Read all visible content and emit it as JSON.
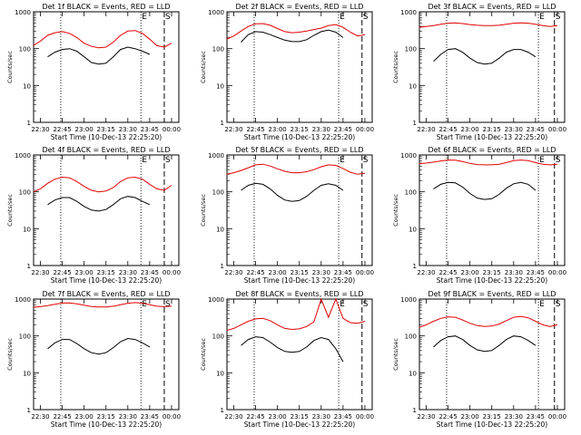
{
  "figure": {
    "xlabel": "Start Time (10-Dec-13 22:25:20)",
    "ylabel": "Counts/sec",
    "time_ticks": [
      "22:30",
      "22:45",
      "23:00",
      "23:15",
      "23:30",
      "23:45",
      "00:00"
    ],
    "y_ticks": [
      "1",
      "10",
      "100",
      "1000"
    ],
    "corner_markers": [
      "E",
      "S"
    ],
    "colors": {
      "events": "#000000",
      "lld": "#e00000",
      "background": "#ffffff"
    }
  },
  "chart_data": [
    {
      "type": "line",
      "title": "Det 1f BLACK = Events, RED = LLD",
      "xlim": [
        "22:25:20",
        "00:05:00"
      ],
      "ylim": [
        1,
        1000
      ],
      "yscale": "log",
      "markers": {
        "dotted": [
          "22:44",
          "23:39"
        ],
        "dashed": [
          "23:55"
        ]
      },
      "series": [
        {
          "name": "Events",
          "color": "#000000",
          "x": [
            "22:35",
            "22:40",
            "22:45",
            "22:50",
            "22:55",
            "23:00",
            "23:05",
            "23:10",
            "23:15",
            "23:20",
            "23:25",
            "23:30",
            "23:35",
            "23:40",
            "23:45"
          ],
          "values": [
            60,
            80,
            95,
            100,
            85,
            60,
            42,
            38,
            40,
            60,
            95,
            110,
            100,
            85,
            70
          ]
        },
        {
          "name": "LLD",
          "color": "#e00000",
          "x": [
            "22:25",
            "22:30",
            "22:35",
            "22:40",
            "22:45",
            "22:50",
            "22:55",
            "23:00",
            "23:05",
            "23:10",
            "23:15",
            "23:20",
            "23:25",
            "23:30",
            "23:35",
            "23:40",
            "23:45",
            "23:50",
            "23:55",
            "00:00"
          ],
          "values": [
            120,
            160,
            230,
            270,
            290,
            260,
            200,
            140,
            115,
            105,
            110,
            150,
            230,
            300,
            310,
            260,
            180,
            120,
            110,
            140
          ]
        }
      ]
    },
    {
      "type": "line",
      "title": "Det 2f BLACK = Events, RED = LLD",
      "xlim": [
        "22:25:20",
        "00:05:00"
      ],
      "ylim": [
        1,
        1000
      ],
      "yscale": "log",
      "markers": {
        "dotted": [
          "22:44",
          "23:42"
        ],
        "dashed": [
          "23:58"
        ]
      },
      "series": [
        {
          "name": "Events",
          "color": "#000000",
          "x": [
            "22:35",
            "22:40",
            "22:45",
            "22:50",
            "22:55",
            "23:00",
            "23:05",
            "23:10",
            "23:15",
            "23:20",
            "23:25",
            "23:30",
            "23:35",
            "23:40",
            "23:45"
          ],
          "values": [
            150,
            240,
            290,
            280,
            240,
            200,
            170,
            155,
            155,
            175,
            230,
            290,
            320,
            280,
            200
          ]
        },
        {
          "name": "LLD",
          "color": "#e00000",
          "x": [
            "22:25",
            "22:30",
            "22:35",
            "22:40",
            "22:45",
            "22:50",
            "22:55",
            "23:00",
            "23:05",
            "23:10",
            "23:15",
            "23:20",
            "23:25",
            "23:30",
            "23:35",
            "23:40",
            "23:45",
            "23:50",
            "23:55",
            "00:00"
          ],
          "values": [
            180,
            220,
            300,
            400,
            470,
            480,
            430,
            350,
            290,
            270,
            280,
            300,
            330,
            360,
            420,
            450,
            380,
            280,
            220,
            240
          ]
        }
      ]
    },
    {
      "type": "line",
      "title": "Det 3f BLACK = Events, RED = LLD",
      "xlim": [
        "22:25:20",
        "00:05:00"
      ],
      "ylim": [
        1,
        1000
      ],
      "yscale": "log",
      "markers": {
        "dotted": [
          "22:44",
          "23:47"
        ],
        "dashed": [
          "23:58"
        ]
      },
      "series": [
        {
          "name": "Events",
          "color": "#000000",
          "x": [
            "22:35",
            "22:40",
            "22:45",
            "22:50",
            "22:55",
            "23:00",
            "23:05",
            "23:10",
            "23:15",
            "23:20",
            "23:25",
            "23:30",
            "23:35",
            "23:40",
            "23:45"
          ],
          "values": [
            45,
            70,
            95,
            100,
            80,
            55,
            42,
            38,
            40,
            55,
            80,
            95,
            95,
            80,
            60
          ]
        },
        {
          "name": "LLD",
          "color": "#e00000",
          "x": [
            "22:25",
            "22:30",
            "22:35",
            "22:40",
            "22:45",
            "22:50",
            "22:55",
            "23:00",
            "23:05",
            "23:10",
            "23:15",
            "23:20",
            "23:25",
            "23:30",
            "23:35",
            "23:40",
            "23:45",
            "23:50",
            "23:55",
            "00:00"
          ],
          "values": [
            380,
            400,
            420,
            460,
            490,
            500,
            480,
            450,
            430,
            420,
            420,
            430,
            460,
            490,
            500,
            490,
            460,
            420,
            400,
            420
          ]
        }
      ]
    },
    {
      "type": "line",
      "title": "Det 4f BLACK = Events, RED = LLD",
      "xlim": [
        "22:25:20",
        "00:05:00"
      ],
      "ylim": [
        1,
        1000
      ],
      "yscale": "log",
      "markers": {
        "dotted": [
          "22:44",
          "23:39"
        ],
        "dashed": [
          "23:55"
        ]
      },
      "series": [
        {
          "name": "Events",
          "color": "#000000",
          "x": [
            "22:35",
            "22:40",
            "22:45",
            "22:50",
            "22:55",
            "23:00",
            "23:05",
            "23:10",
            "23:15",
            "23:20",
            "23:25",
            "23:30",
            "23:35",
            "23:40",
            "23:45"
          ],
          "values": [
            45,
            60,
            70,
            70,
            55,
            40,
            32,
            30,
            33,
            45,
            65,
            75,
            70,
            55,
            45
          ]
        },
        {
          "name": "LLD",
          "color": "#e00000",
          "x": [
            "22:25",
            "22:30",
            "22:35",
            "22:40",
            "22:45",
            "22:50",
            "22:55",
            "23:00",
            "23:05",
            "23:10",
            "23:15",
            "23:20",
            "23:25",
            "23:30",
            "23:35",
            "23:40",
            "23:45",
            "23:50",
            "23:55",
            "00:00"
          ],
          "values": [
            100,
            120,
            170,
            220,
            250,
            240,
            190,
            140,
            110,
            100,
            105,
            130,
            190,
            240,
            250,
            220,
            160,
            120,
            110,
            150
          ]
        }
      ]
    },
    {
      "type": "line",
      "title": "Det 5f BLACK = Events, RED = LLD",
      "xlim": [
        "22:25:20",
        "00:05:00"
      ],
      "ylim": [
        1,
        1000
      ],
      "yscale": "log",
      "markers": {
        "dotted": [
          "22:44",
          "23:42"
        ],
        "dashed": [
          "23:58"
        ]
      },
      "series": [
        {
          "name": "Events",
          "color": "#000000",
          "x": [
            "22:35",
            "22:40",
            "22:45",
            "22:50",
            "22:55",
            "23:00",
            "23:05",
            "23:10",
            "23:15",
            "23:20",
            "23:25",
            "23:30",
            "23:35",
            "23:40",
            "23:45"
          ],
          "values": [
            110,
            150,
            170,
            160,
            120,
            80,
            60,
            55,
            58,
            75,
            110,
            150,
            165,
            150,
            110
          ]
        },
        {
          "name": "LLD",
          "color": "#e00000",
          "x": [
            "22:25",
            "22:30",
            "22:35",
            "22:40",
            "22:45",
            "22:50",
            "22:55",
            "23:00",
            "23:05",
            "23:10",
            "23:15",
            "23:20",
            "23:25",
            "23:30",
            "23:35",
            "23:40",
            "23:45",
            "23:50",
            "23:55",
            "00:00"
          ],
          "values": [
            300,
            330,
            380,
            450,
            540,
            560,
            500,
            420,
            360,
            330,
            330,
            350,
            400,
            480,
            540,
            520,
            430,
            340,
            300,
            320
          ]
        }
      ]
    },
    {
      "type": "line",
      "title": "Det 6f BLACK = Events, RED = LLD",
      "xlim": [
        "22:25:20",
        "00:05:00"
      ],
      "ylim": [
        1,
        1000
      ],
      "yscale": "log",
      "markers": {
        "dotted": [
          "22:44",
          "23:47"
        ],
        "dashed": [
          "23:58"
        ]
      },
      "series": [
        {
          "name": "Events",
          "color": "#000000",
          "x": [
            "22:35",
            "22:40",
            "22:45",
            "22:50",
            "22:55",
            "23:00",
            "23:05",
            "23:10",
            "23:15",
            "23:20",
            "23:25",
            "23:30",
            "23:35",
            "23:40",
            "23:45"
          ],
          "values": [
            120,
            160,
            180,
            175,
            135,
            90,
            68,
            62,
            65,
            85,
            125,
            165,
            180,
            160,
            110
          ]
        },
        {
          "name": "LLD",
          "color": "#e00000",
          "x": [
            "22:25",
            "22:30",
            "22:35",
            "22:40",
            "22:45",
            "22:50",
            "22:55",
            "23:00",
            "23:05",
            "23:10",
            "23:15",
            "23:20",
            "23:25",
            "23:30",
            "23:35",
            "23:40",
            "23:45",
            "23:50",
            "23:55",
            "00:00"
          ],
          "values": [
            580,
            600,
            640,
            690,
            730,
            720,
            660,
            590,
            550,
            540,
            540,
            560,
            620,
            700,
            730,
            700,
            620,
            560,
            540,
            560
          ]
        }
      ]
    },
    {
      "type": "line",
      "title": "Det 7f BLACK = Events, RED = LLD",
      "xlim": [
        "22:25:20",
        "00:05:00"
      ],
      "ylim": [
        1,
        1000
      ],
      "yscale": "log",
      "markers": {
        "dotted": [
          "22:44",
          "23:39"
        ],
        "dashed": [
          "23:55"
        ]
      },
      "series": [
        {
          "name": "Events",
          "color": "#000000",
          "x": [
            "22:35",
            "22:40",
            "22:45",
            "22:50",
            "22:55",
            "23:00",
            "23:05",
            "23:10",
            "23:15",
            "23:20",
            "23:25",
            "23:30",
            "23:35",
            "23:40",
            "23:45"
          ],
          "values": [
            45,
            65,
            80,
            80,
            62,
            45,
            35,
            32,
            35,
            48,
            70,
            85,
            80,
            65,
            50
          ]
        },
        {
          "name": "LLD",
          "color": "#e00000",
          "x": [
            "22:25",
            "22:30",
            "22:35",
            "22:40",
            "22:45",
            "22:50",
            "22:55",
            "23:00",
            "23:05",
            "23:10",
            "23:15",
            "23:20",
            "23:25",
            "23:30",
            "23:35",
            "23:40",
            "23:45",
            "23:50",
            "23:55",
            "00:00"
          ],
          "values": [
            600,
            620,
            660,
            720,
            780,
            790,
            740,
            680,
            630,
            610,
            610,
            640,
            700,
            770,
            800,
            770,
            700,
            640,
            620,
            640
          ]
        }
      ]
    },
    {
      "type": "line",
      "title": "Det 8f BLACK = Events, RED = LLD",
      "xlim": [
        "22:25:20",
        "00:05:00"
      ],
      "ylim": [
        1,
        1000
      ],
      "yscale": "log",
      "markers": {
        "dotted": [
          "22:44",
          "23:42"
        ],
        "dashed": [
          "23:58"
        ]
      },
      "series": [
        {
          "name": "Events",
          "color": "#000000",
          "x": [
            "22:35",
            "22:40",
            "22:45",
            "22:50",
            "22:55",
            "23:00",
            "23:05",
            "23:10",
            "23:15",
            "23:20",
            "23:25",
            "23:30",
            "23:35",
            "23:40",
            "23:45"
          ],
          "values": [
            55,
            80,
            95,
            90,
            68,
            48,
            38,
            36,
            38,
            50,
            75,
            90,
            80,
            45,
            20
          ]
        },
        {
          "name": "LLD",
          "color": "#e00000",
          "x": [
            "22:25",
            "22:30",
            "22:35",
            "22:40",
            "22:45",
            "22:50",
            "22:55",
            "23:00",
            "23:05",
            "23:10",
            "23:15",
            "23:20",
            "23:25",
            "23:30",
            "23:35",
            "23:40",
            "23:45",
            "23:50",
            "23:55",
            "00:00"
          ],
          "values": [
            140,
            160,
            200,
            250,
            290,
            300,
            260,
            200,
            160,
            150,
            155,
            180,
            240,
            1000,
            320,
            1000,
            300,
            230,
            220,
            250
          ]
        }
      ]
    },
    {
      "type": "line",
      "title": "Det 9f BLACK = Events, RED = LLD",
      "xlim": [
        "22:25:20",
        "00:05:00"
      ],
      "ylim": [
        1,
        1000
      ],
      "yscale": "log",
      "markers": {
        "dotted": [
          "22:44",
          "23:47"
        ],
        "dashed": [
          "23:58"
        ]
      },
      "series": [
        {
          "name": "Events",
          "color": "#000000",
          "x": [
            "22:35",
            "22:40",
            "22:45",
            "22:50",
            "22:55",
            "23:00",
            "23:05",
            "23:10",
            "23:15",
            "23:20",
            "23:25",
            "23:30",
            "23:35",
            "23:40",
            "23:45"
          ],
          "values": [
            50,
            75,
            95,
            100,
            80,
            55,
            42,
            38,
            40,
            55,
            80,
            100,
            95,
            75,
            55
          ]
        },
        {
          "name": "LLD",
          "color": "#e00000",
          "x": [
            "22:25",
            "22:30",
            "22:35",
            "22:40",
            "22:45",
            "22:50",
            "22:55",
            "23:00",
            "23:05",
            "23:10",
            "23:15",
            "23:20",
            "23:25",
            "23:30",
            "23:35",
            "23:40",
            "23:45",
            "23:50",
            "23:55",
            "00:00"
          ],
          "values": [
            170,
            200,
            250,
            300,
            330,
            320,
            270,
            220,
            190,
            180,
            185,
            210,
            260,
            320,
            340,
            310,
            250,
            200,
            180,
            200
          ]
        }
      ]
    }
  ]
}
